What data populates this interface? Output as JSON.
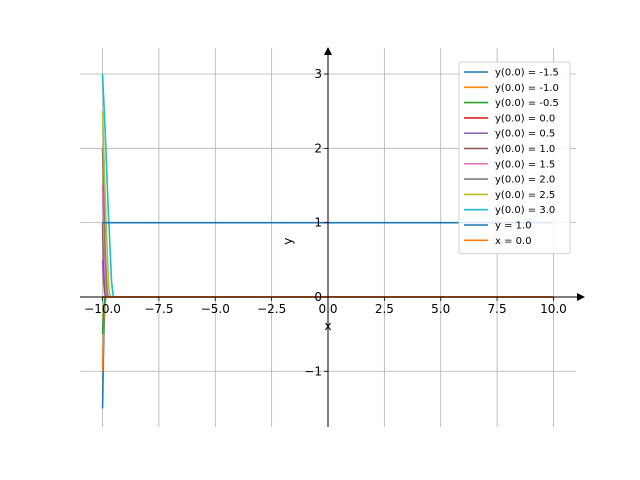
{
  "chart_data": {
    "type": "line",
    "title": "",
    "xlabel": "x",
    "ylabel": "y",
    "xlim": [
      -11.0,
      11.0
    ],
    "ylim": [
      -1.75,
      3.35
    ],
    "grid": true,
    "legend_position": "top-right",
    "x_ticks": [
      -10.0,
      -7.5,
      -5.0,
      -2.5,
      0.0,
      2.5,
      5.0,
      7.5,
      10.0
    ],
    "x_tick_labels": [
      "−10.0",
      "−7.5",
      "−5.0",
      "−2.5",
      "0.0",
      "2.5",
      "5.0",
      "7.5",
      "10.0"
    ],
    "y_ticks": [
      -1,
      0,
      1,
      2,
      3
    ],
    "y_tick_labels": [
      "−1",
      "0",
      "1",
      "2",
      "3"
    ],
    "series": [
      {
        "name": "y(0.0) = -1.5",
        "color": "#1f77b4",
        "x": [
          -10.0,
          -9.95,
          -9.9,
          -9.85
        ],
        "y": [
          -1.5,
          -0.6,
          -0.1,
          0.0
        ]
      },
      {
        "name": "y(0.0) = -1.0",
        "color": "#ff7f0e",
        "x": [
          -10.0,
          -9.95,
          -9.9,
          -9.85
        ],
        "y": [
          -1.0,
          -0.35,
          -0.05,
          0.0
        ]
      },
      {
        "name": "y(0.0) = -0.5",
        "color": "#2ca02c",
        "x": [
          -10.0,
          -9.95,
          -9.9,
          -9.85
        ],
        "y": [
          -0.5,
          -0.15,
          -0.02,
          0.0
        ]
      },
      {
        "name": "y(0.0) = 0.0",
        "color": "#d62728",
        "x": [
          -10.0,
          10.0
        ],
        "y": [
          0.0,
          0.0
        ]
      },
      {
        "name": "y(0.0) = 0.5",
        "color": "#9467bd",
        "x": [
          -10.0,
          -9.95,
          -9.9,
          -9.85
        ],
        "y": [
          0.5,
          0.2,
          0.03,
          0.0
        ]
      },
      {
        "name": "y(0.0) = 1.0",
        "color": "#8c564b",
        "x": [
          -10.0,
          -9.95,
          -9.9,
          -9.85
        ],
        "y": [
          1.0,
          0.45,
          0.08,
          0.0
        ]
      },
      {
        "name": "y(0.0) = 1.5",
        "color": "#e377c2",
        "x": [
          -10.0,
          -9.96,
          -9.9,
          -9.84,
          -9.8
        ],
        "y": [
          1.5,
          1.0,
          0.4,
          0.05,
          0.0
        ]
      },
      {
        "name": "y(0.0) = 2.0",
        "color": "#7f7f7f",
        "x": [
          -10.0,
          -9.95,
          -9.88,
          -9.8,
          -9.75
        ],
        "y": [
          2.0,
          1.4,
          0.6,
          0.08,
          0.0
        ]
      },
      {
        "name": "y(0.0) = 2.5",
        "color": "#bcbd22",
        "x": [
          -10.0,
          -9.92,
          -9.82,
          -9.72,
          -9.65
        ],
        "y": [
          2.5,
          1.7,
          0.8,
          0.1,
          0.0
        ]
      },
      {
        "name": "y(0.0) = 3.0",
        "color": "#17becf",
        "x": [
          -10.0,
          -9.88,
          -9.75,
          -9.6,
          -9.52
        ],
        "y": [
          3.0,
          2.2,
          1.2,
          0.2,
          0.0
        ]
      },
      {
        "name": "y = 1.0",
        "color": "#1f77b4",
        "x": [
          -10.0,
          10.0
        ],
        "y": [
          1.0,
          1.0
        ]
      },
      {
        "name": "x = 0.0",
        "color": "#ff7f0e",
        "x": [
          -10.0,
          10.0
        ],
        "y": [
          0.0,
          0.0
        ]
      }
    ]
  }
}
